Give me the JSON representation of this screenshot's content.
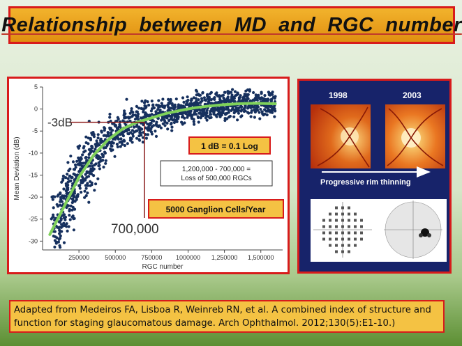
{
  "slide_title": "Relationship  between  MD  and  RGC  number",
  "chart_data": {
    "type": "scatter",
    "title": "",
    "xlabel": "RGC number",
    "ylabel": "Mean Deviation (dB)",
    "xlim": [
      0,
      1650000
    ],
    "ylim": [
      -32,
      5
    ],
    "x_ticks": [
      "250000",
      "500000",
      "750000",
      "1000000",
      "1,250000",
      "1,500000"
    ],
    "x_tick_values": [
      250000,
      500000,
      750000,
      1000000,
      1250000,
      1500000
    ],
    "y_ticks": [
      "5",
      "0",
      "-5",
      "-10",
      "-15",
      "-20",
      "-25",
      "-30"
    ],
    "y_tick_values": [
      5,
      0,
      -5,
      -10,
      -15,
      -20,
      -25,
      -30
    ],
    "fit_curve": {
      "x": [
        50000,
        150000,
        250000,
        350000,
        450000,
        550000,
        650000,
        750000,
        850000,
        950000,
        1050000,
        1150000,
        1250000,
        1350000,
        1450000,
        1600000
      ],
      "y": [
        -28.5,
        -22,
        -15.5,
        -10.5,
        -7,
        -4.5,
        -3,
        -2,
        -1,
        -0.3,
        0.3,
        0.7,
        1,
        1.2,
        1.3,
        1.2
      ]
    },
    "reference_point": {
      "x": 700000,
      "y": -3
    },
    "annotations": {
      "minus3db": "-3dB",
      "rgc700k": "700,000",
      "loss_line1": "1,200,000 - 700,000 =",
      "loss_line2": "Loss of 500,000 RGCs",
      "db_log": "1 dB = 0.1 Log",
      "ganglion_rate": "5000 Ganglion Cells/Year"
    },
    "scatter_color": "#16305e",
    "fit_color": "#7fd15a",
    "ref_line_color": "#8b1a1a"
  },
  "figure": {
    "year_left": "1998",
    "year_right": "2003",
    "caption": "Progressive rim thinning"
  },
  "citation": "Adapted from Medeiros FA, Lisboa R, Weinreb RN, et al. A combined index of structure and function for staging glaucomatous damage. Arch Ophthalmol. 2012;130(5):E1-10.)"
}
